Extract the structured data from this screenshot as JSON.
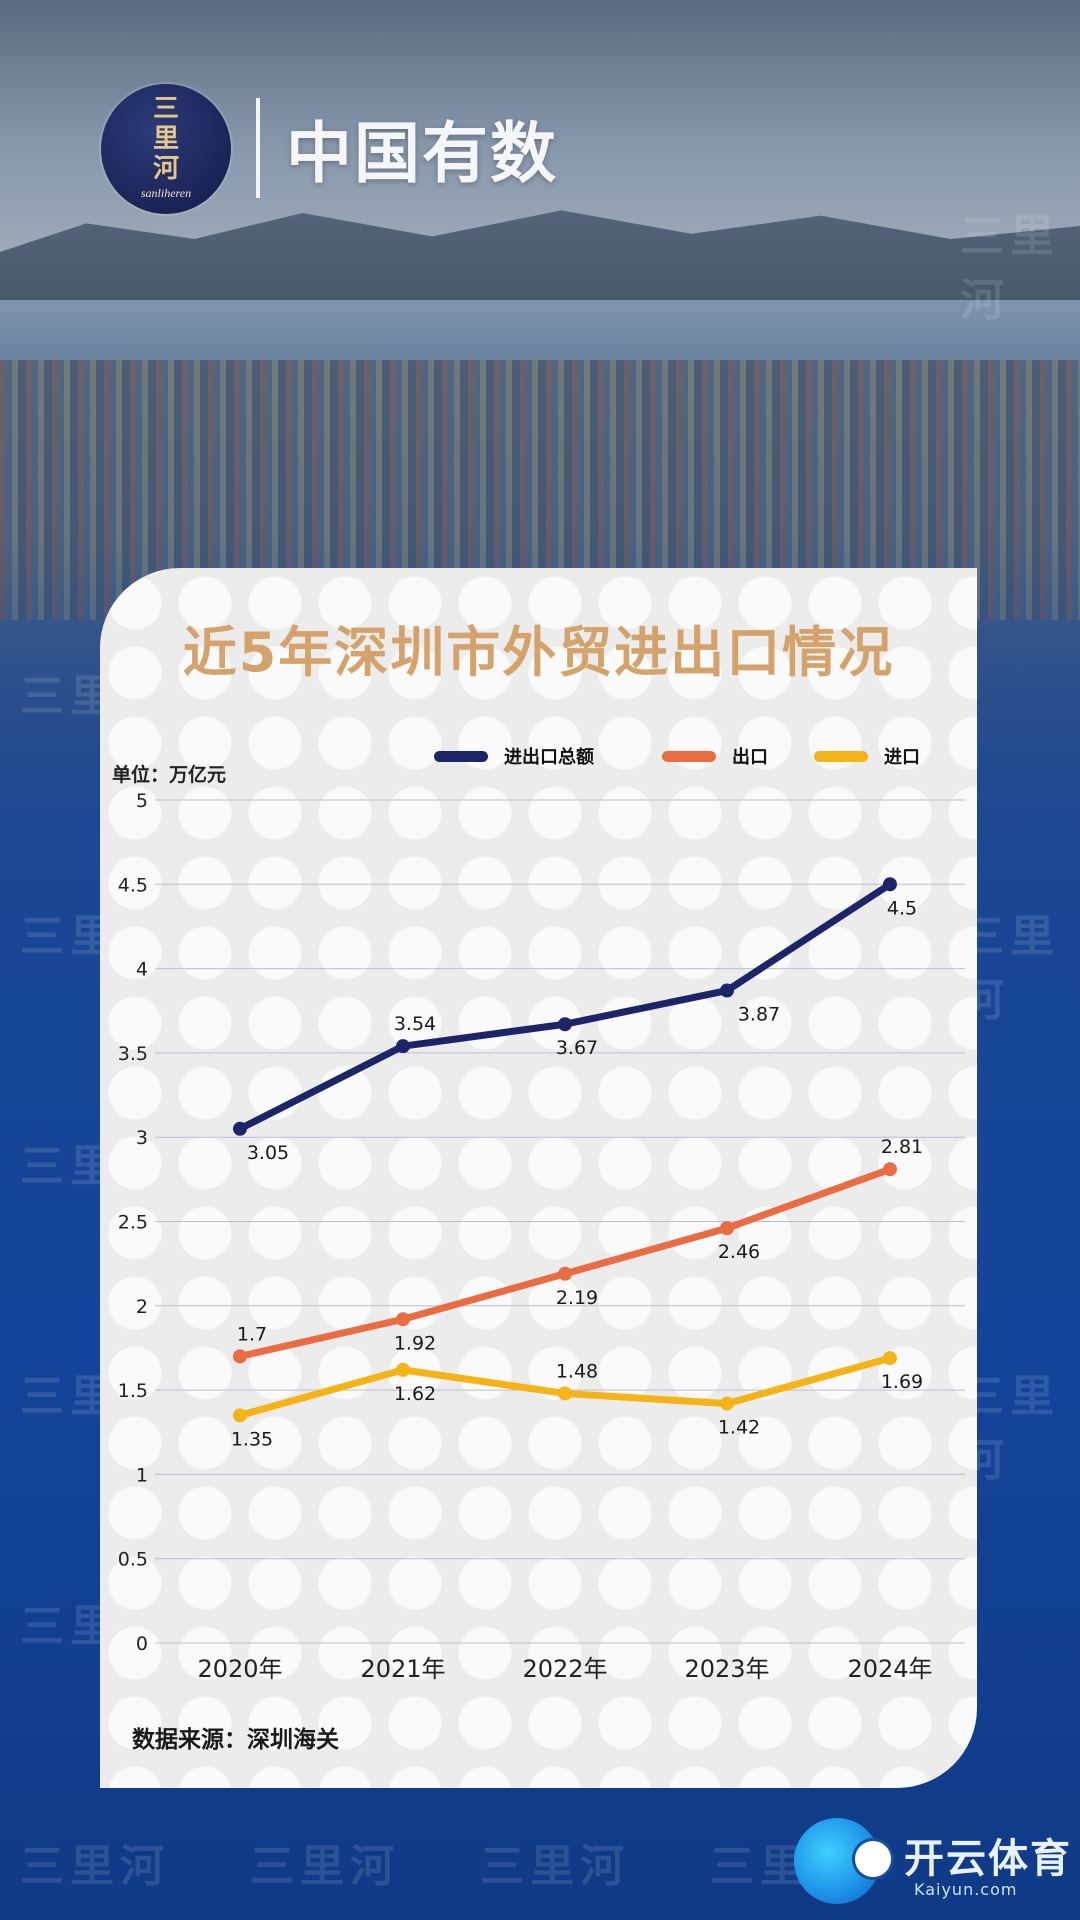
{
  "brand": {
    "logo_text_line1": "三",
    "logo_text_line2": "里",
    "logo_text_line3": "河",
    "logo_sub": "sanliheren",
    "title": "中国有数"
  },
  "watermark": "三里河",
  "source": "数据来源：深圳海关",
  "footer_badge": {
    "text": "开云体育",
    "url": "Kaiyun.com"
  },
  "colors": {
    "total": "#1d2569",
    "export": "#e96c43",
    "import": "#f4b316",
    "title": "#d4a36b",
    "grid": "#b9bfd0"
  },
  "chart_data": {
    "type": "line",
    "title": "近5年深圳市外贸进出口情况",
    "unit_label": "单位：万亿元",
    "categories": [
      "2020年",
      "2021年",
      "2022年",
      "2023年",
      "2024年"
    ],
    "ylim": [
      0,
      5
    ],
    "yticks": [
      "0",
      "0.5",
      "1",
      "1.5",
      "2",
      "2.5",
      "3",
      "3.5",
      "4",
      "4.5",
      "5"
    ],
    "grid": true,
    "legend_position": "top-right",
    "series": [
      {
        "name": "进出口总额",
        "key": "total",
        "values": [
          3.05,
          3.54,
          3.67,
          3.87,
          4.5
        ],
        "labels": [
          "3.05",
          "3.54",
          "3.67",
          "3.87",
          "4.5"
        ],
        "label_pos": [
          "below",
          "above",
          "below",
          "below",
          "below"
        ]
      },
      {
        "name": "出口",
        "key": "export",
        "values": [
          1.7,
          1.92,
          2.19,
          2.46,
          2.81
        ],
        "labels": [
          "1.7",
          "1.92",
          "2.19",
          "2.46",
          "2.81"
        ],
        "label_pos": [
          "above",
          "below",
          "below",
          "below",
          "above"
        ]
      },
      {
        "name": "进口",
        "key": "import",
        "values": [
          1.35,
          1.62,
          1.48,
          1.42,
          1.69
        ],
        "labels": [
          "1.35",
          "1.62",
          "1.48",
          "1.42",
          "1.69"
        ],
        "label_pos": [
          "below",
          "below",
          "above",
          "below",
          "below"
        ]
      }
    ]
  }
}
